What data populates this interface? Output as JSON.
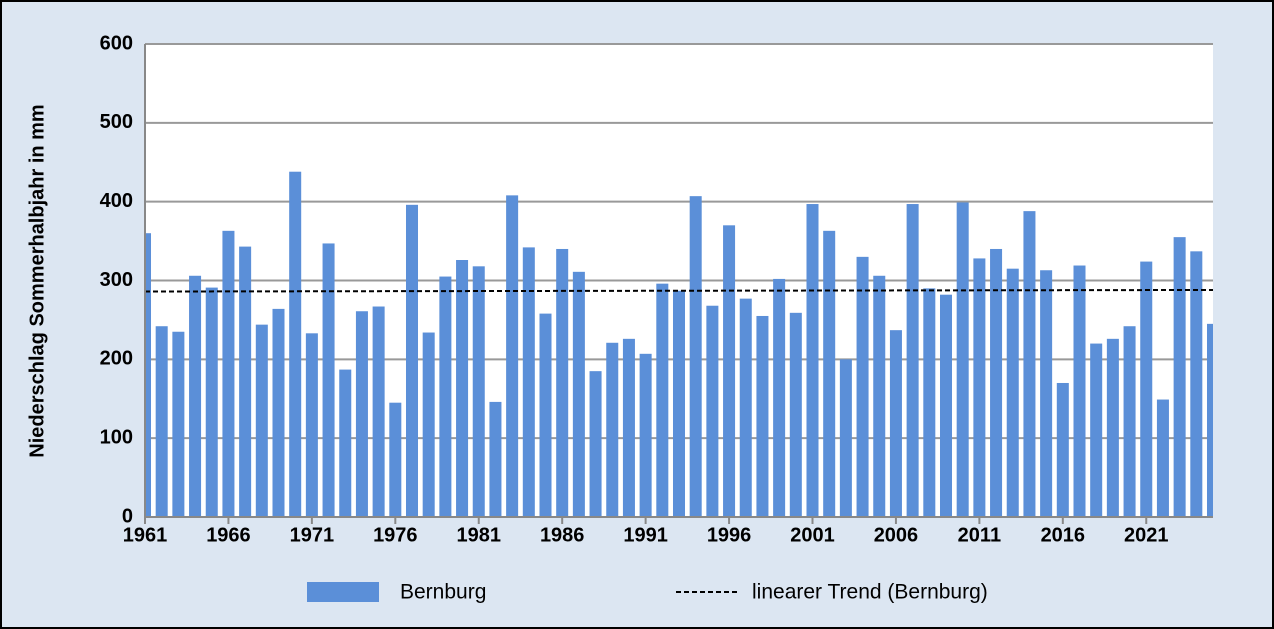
{
  "chart_data": {
    "type": "bar",
    "y_label": "Niederschlag Sommerhalbjahr in mm",
    "x": [
      1961,
      1962,
      1963,
      1964,
      1965,
      1966,
      1967,
      1968,
      1969,
      1970,
      1971,
      1972,
      1973,
      1974,
      1975,
      1976,
      1977,
      1978,
      1979,
      1980,
      1981,
      1982,
      1983,
      1984,
      1985,
      1986,
      1987,
      1988,
      1989,
      1990,
      1991,
      1992,
      1993,
      1994,
      1995,
      1996,
      1997,
      1998,
      1999,
      2000,
      2001,
      2002,
      2003,
      2004,
      2005,
      2006,
      2007,
      2008,
      2009,
      2010,
      2011,
      2012,
      2013,
      2014,
      2015,
      2016,
      2017,
      2018,
      2019,
      2020,
      2021,
      2022,
      2023,
      2024,
      2025
    ],
    "series": [
      {
        "name": "Bernburg",
        "color": "#5b8fd8",
        "values": [
          360,
          242,
          235,
          306,
          291,
          363,
          343,
          244,
          264,
          438,
          233,
          347,
          187,
          261,
          267,
          145,
          396,
          234,
          305,
          326,
          318,
          146,
          408,
          342,
          258,
          340,
          311,
          185,
          221,
          226,
          207,
          296,
          287,
          407,
          268,
          370,
          277,
          255,
          302,
          259,
          397,
          363,
          200,
          330,
          306,
          237,
          397,
          290,
          282,
          399,
          328,
          340,
          315,
          388,
          313,
          170,
          319,
          220,
          226,
          242,
          324,
          149,
          355,
          337,
          245
        ]
      }
    ],
    "trend": {
      "name": "linearer Trend (Bernburg)",
      "color": "#000000",
      "x": [
        1961,
        2025
      ],
      "values": [
        286,
        288
      ]
    },
    "xlim": [
      1961,
      2025
    ],
    "xticks": [
      1961,
      1966,
      1971,
      1976,
      1981,
      1986,
      1991,
      1996,
      2001,
      2006,
      2011,
      2016,
      2021
    ],
    "ylim": [
      0,
      600
    ],
    "yticks": [
      0,
      100,
      200,
      300,
      400,
      500,
      600
    ],
    "grid": true
  }
}
